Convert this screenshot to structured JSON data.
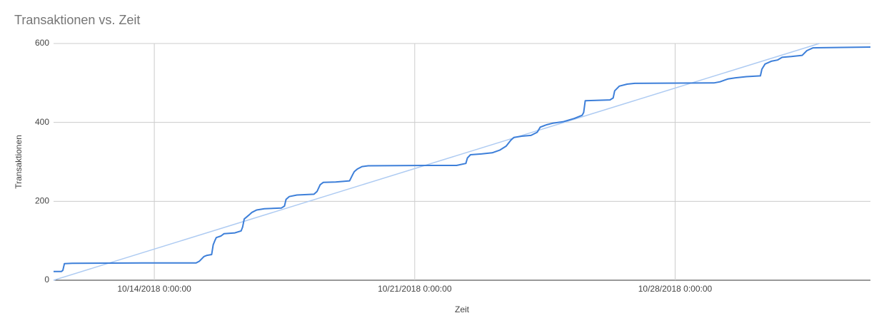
{
  "chart_data": {
    "type": "line",
    "title": "Transaktionen vs. Zeit",
    "x_label": "Zeit",
    "y_label": "Transaktionen",
    "x": [
      "10/11/2018 7:00:00",
      "10/11/2018 12:00:00",
      "10/11/2018 13:00:00",
      "10/11/2018 14:00:00",
      "10/11/2018 19:00:00",
      "10/13/2018 17:00:00",
      "10/15/2018 3:00:00",
      "10/15/2018 5:00:00",
      "10/15/2018 8:00:00",
      "10/15/2018 10:00:00",
      "10/15/2018 13:00:00",
      "10/15/2018 14:00:00",
      "10/15/2018 15:00:00",
      "10/15/2018 16:00:00",
      "10/15/2018 19:00:00",
      "10/15/2018 21:00:00",
      "10/16/2018 4:00:00",
      "10/16/2018 8:00:00",
      "10/16/2018 9:00:00",
      "10/16/2018 10:00:00",
      "10/16/2018 13:00:00",
      "10/16/2018 15:00:00",
      "10/16/2018 18:00:00",
      "10/16/2018 23:00:00",
      "10/17/2018 10:00:00",
      "10/17/2018 12:00:00",
      "10/17/2018 13:00:00",
      "10/17/2018 15:00:00",
      "10/17/2018 20:00:00",
      "10/18/2018 7:00:00",
      "10/18/2018 9:00:00",
      "10/18/2018 11:00:00",
      "10/18/2018 13:00:00",
      "10/18/2018 21:00:00",
      "10/19/2018 6:00:00",
      "10/19/2018 8:00:00",
      "10/19/2018 9:00:00",
      "10/19/2018 11:00:00",
      "10/19/2018 14:00:00",
      "10/19/2018 18:00:00",
      "10/21/2018 9:00:00",
      "10/22/2018 3:00:00",
      "10/22/2018 9:00:00",
      "10/22/2018 10:00:00",
      "10/22/2018 12:00:00",
      "10/22/2018 19:00:00",
      "10/23/2018 2:00:00",
      "10/23/2018 7:00:00",
      "10/23/2018 11:00:00",
      "10/23/2018 14:00:00",
      "10/23/2018 16:00:00",
      "10/23/2018 21:00:00",
      "10/24/2018 3:00:00",
      "10/24/2018 7:00:00",
      "10/24/2018 9:00:00",
      "10/24/2018 13:00:00",
      "10/24/2018 17:00:00",
      "10/25/2018 0:00:00",
      "10/25/2018 7:00:00",
      "10/25/2018 12:00:00",
      "10/25/2018 13:00:00",
      "10/25/2018 14:00:00",
      "10/26/2018 6:00:00",
      "10/26/2018 8:00:00",
      "10/26/2018 9:00:00",
      "10/26/2018 12:00:00",
      "10/26/2018 17:00:00",
      "10/26/2018 22:00:00",
      "10/29/2018 1:00:00",
      "10/29/2018 5:00:00",
      "10/29/2018 10:00:00",
      "10/29/2018 15:00:00",
      "10/29/2018 22:00:00",
      "10/30/2018 7:00:00",
      "10/30/2018 8:00:00",
      "10/30/2018 10:00:00",
      "10/30/2018 14:00:00",
      "10/30/2018 18:00:00",
      "10/30/2018 21:00:00",
      "10/31/2018 3:00:00",
      "10/31/2018 10:00:00",
      "10/31/2018 13:00:00",
      "10/31/2018 17:00:00",
      "11/1/2018 12:00:00",
      "11/2/2018 6:00:00"
    ],
    "series": [
      {
        "name": "Transaktionen",
        "color": "#3d7fd9",
        "values": [
          22,
          22,
          25,
          42,
          43,
          44,
          44,
          48,
          60,
          63,
          65,
          90,
          100,
          108,
          112,
          118,
          120,
          125,
          135,
          155,
          165,
          172,
          178,
          181,
          183,
          188,
          205,
          212,
          216,
          218,
          225,
          242,
          248,
          249,
          252,
          268,
          275,
          282,
          288,
          290,
          291,
          291,
          296,
          310,
          318,
          320,
          323,
          330,
          340,
          355,
          362,
          365,
          367,
          375,
          388,
          394,
          398,
          402,
          410,
          418,
          425,
          455,
          457,
          462,
          480,
          492,
          497,
          499,
          500,
          503,
          510,
          513,
          516,
          518,
          535,
          548,
          555,
          558,
          565,
          567,
          570,
          582,
          589,
          590,
          591
        ]
      }
    ],
    "trendline": {
      "color": "#aecbf2",
      "x": [
        "10/11/2018 7:00:00",
        "10/31/2018 21:00:00"
      ],
      "values": [
        0,
        600
      ]
    },
    "xlim": [
      "10/11/2018 7:00:00",
      "11/2/2018 6:00:00"
    ],
    "xticks": [
      "10/14/2018 0:00:00",
      "10/21/2018 0:00:00",
      "10/28/2018 0:00:00"
    ],
    "ylim": [
      0,
      600
    ],
    "yticks": [
      0,
      200,
      400,
      600
    ],
    "grid": true
  }
}
